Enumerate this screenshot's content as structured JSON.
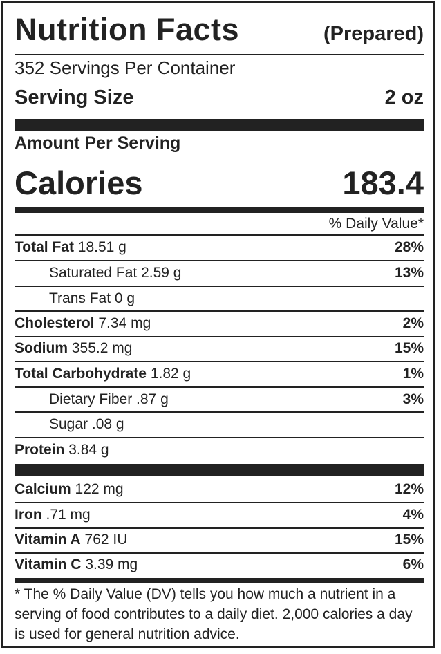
{
  "label": {
    "title": "Nutrition Facts",
    "subtitle": "(Prepared)",
    "servings_per_container": "352 Servings Per Container",
    "serving_size_label": "Serving Size",
    "serving_size_value": "2 oz",
    "amount_per_serving": "Amount Per Serving",
    "calories_label": "Calories",
    "calories_value": "183.4",
    "daily_value_header": "% Daily Value*",
    "nutrients": [
      {
        "name": "Total Fat",
        "amount": "18.51 g",
        "dv": "28%"
      },
      {
        "name": "Saturated Fat",
        "amount": "2.59 g",
        "dv": "13%"
      },
      {
        "name": "Trans Fat",
        "amount": "0 g",
        "dv": ""
      },
      {
        "name": "Cholesterol",
        "amount": "7.34 mg",
        "dv": "2%"
      },
      {
        "name": "Sodium",
        "amount": "355.2 mg",
        "dv": "15%"
      },
      {
        "name": "Total Carbohydrate",
        "amount": "1.82 g",
        "dv": "1%"
      },
      {
        "name": "Dietary Fiber",
        "amount": ".87 g",
        "dv": "3%"
      },
      {
        "name": "Sugar",
        "amount": ".08 g",
        "dv": ""
      },
      {
        "name": "Protein",
        "amount": "3.84 g",
        "dv": ""
      }
    ],
    "vitamins": [
      {
        "name": "Calcium",
        "amount": "122 mg",
        "dv": "12%"
      },
      {
        "name": "Iron",
        "amount": ".71 mg",
        "dv": "4%"
      },
      {
        "name": "Vitamin A",
        "amount": "762 IU",
        "dv": "15%"
      },
      {
        "name": "Vitamin C",
        "amount": "3.39 mg",
        "dv": "6%"
      }
    ],
    "footnote": "* The % Daily Value (DV) tells you how much a nutrient in a serving of food contributes to a daily diet. 2,000 calories a day is used for general nutrition advice.",
    "colors": {
      "ink": "#222222",
      "background": "#ffffff"
    }
  }
}
